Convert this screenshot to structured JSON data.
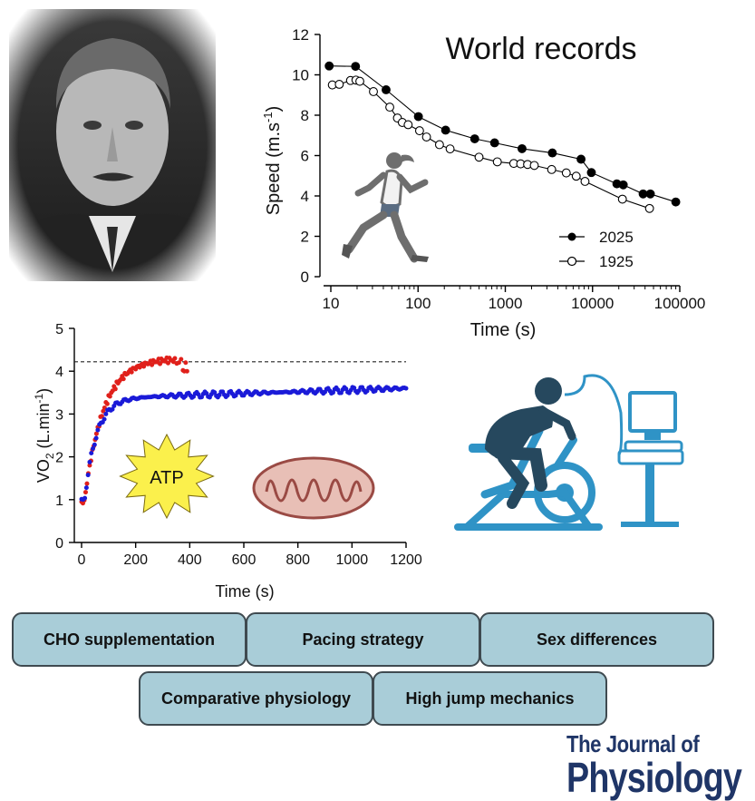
{
  "chart_data": [
    {
      "type": "line",
      "title": "World records",
      "xlabel": "Time (s)",
      "ylabel": "Speed (m.s-1)",
      "ylabel_main": "Speed (m.s",
      "ylabel_sup": "-1",
      "ylabel_close": ")",
      "xscale": "log",
      "xlim": [
        10,
        100000
      ],
      "ylim": [
        0,
        12
      ],
      "xticks": [
        "10",
        "100",
        "1000",
        "10000",
        "100000"
      ],
      "yticks": [
        "0",
        "2",
        "4",
        "6",
        "8",
        "10",
        "12"
      ],
      "legend_position": "lower-right",
      "series": [
        {
          "name": "2025",
          "marker": "filled",
          "color": "#000000",
          "x": [
            9.58,
            19.2,
            43.0,
            100.9,
            207,
            446,
            754,
            1555,
            3463,
            7385,
            9700,
            19000,
            22500,
            38000,
            46000,
            90000
          ],
          "y": [
            10.44,
            10.42,
            9.26,
            7.93,
            7.26,
            6.83,
            6.63,
            6.34,
            6.13,
            5.82,
            5.16,
            4.6,
            4.55,
            4.1,
            4.1,
            3.7
          ]
        },
        {
          "name": "1925",
          "marker": "open",
          "color": "#000000",
          "x": [
            10.4,
            12.5,
            16.8,
            19.4,
            21.5,
            30.8,
            47.4,
            58,
            66,
            77,
            104,
            125,
            176,
            233,
            500,
            810,
            1250,
            1500,
            1800,
            2150,
            3400,
            5000,
            6500,
            8200,
            22000,
            45000
          ],
          "y": [
            9.5,
            9.53,
            9.72,
            9.74,
            9.68,
            9.17,
            8.4,
            7.86,
            7.64,
            7.53,
            7.23,
            6.92,
            6.54,
            6.33,
            5.92,
            5.69,
            5.61,
            5.59,
            5.56,
            5.51,
            5.31,
            5.14,
            4.98,
            4.72,
            3.84,
            3.38
          ]
        }
      ]
    },
    {
      "type": "scatter",
      "xlabel": "Time (s)",
      "ylabel": "VO2 (L.min-1)",
      "ylabel_vo": "VO",
      "ylabel_sub": "2",
      "ylabel_unit": " (L.min",
      "ylabel_sup": "-1",
      "ylabel_close": ")",
      "xlim": [
        0,
        1200
      ],
      "ylim": [
        0,
        5
      ],
      "xticks": [
        "0",
        "200",
        "400",
        "600",
        "800",
        "1000",
        "1200"
      ],
      "yticks": [
        "0",
        "1",
        "2",
        "3",
        "4",
        "5"
      ],
      "reference_line_y": 4.22,
      "series": [
        {
          "color": "#e0201b",
          "model": {
            "baseline": 0.95,
            "amplitude": 3.35,
            "tau": 70,
            "delay": 10,
            "x_start": 0,
            "x_end": 330,
            "step": 5
          },
          "tail": {
            "x": [
              335,
              340,
              345,
              352,
              360,
              368,
              375,
              380,
              385,
              390
            ],
            "y": [
              4.25,
              4.22,
              4.3,
              4.18,
              4.2,
              4.28,
              4.02,
              4.0,
              4.2,
              4.0
            ]
          }
        },
        {
          "color": "#1a1ad8",
          "model": {
            "baseline": 0.95,
            "amplitude": 2.45,
            "tau": 45,
            "delay": 10,
            "drift_per_1000s": 0.2,
            "x_start": 0,
            "x_end": 1200,
            "step": 6
          }
        }
      ]
    }
  ],
  "badge_atp": "ATP",
  "tags": {
    "row1": [
      "CHO supplementation",
      "Pacing strategy",
      "Sex differences"
    ],
    "row2": [
      "Comparative physiology",
      "High jump mechanics"
    ]
  },
  "journal": {
    "line1": "The Journal of",
    "line2": "Physiology"
  },
  "colors": {
    "tag_fill": "#a9cdd8",
    "journal_blue": "#1f3567",
    "bike_blue": "#2f93c6",
    "rider_dark": "#26485e",
    "mito_fill": "#e8bfb6",
    "mito_stroke": "#9a4a44",
    "atp_fill": "#fbf04c"
  }
}
